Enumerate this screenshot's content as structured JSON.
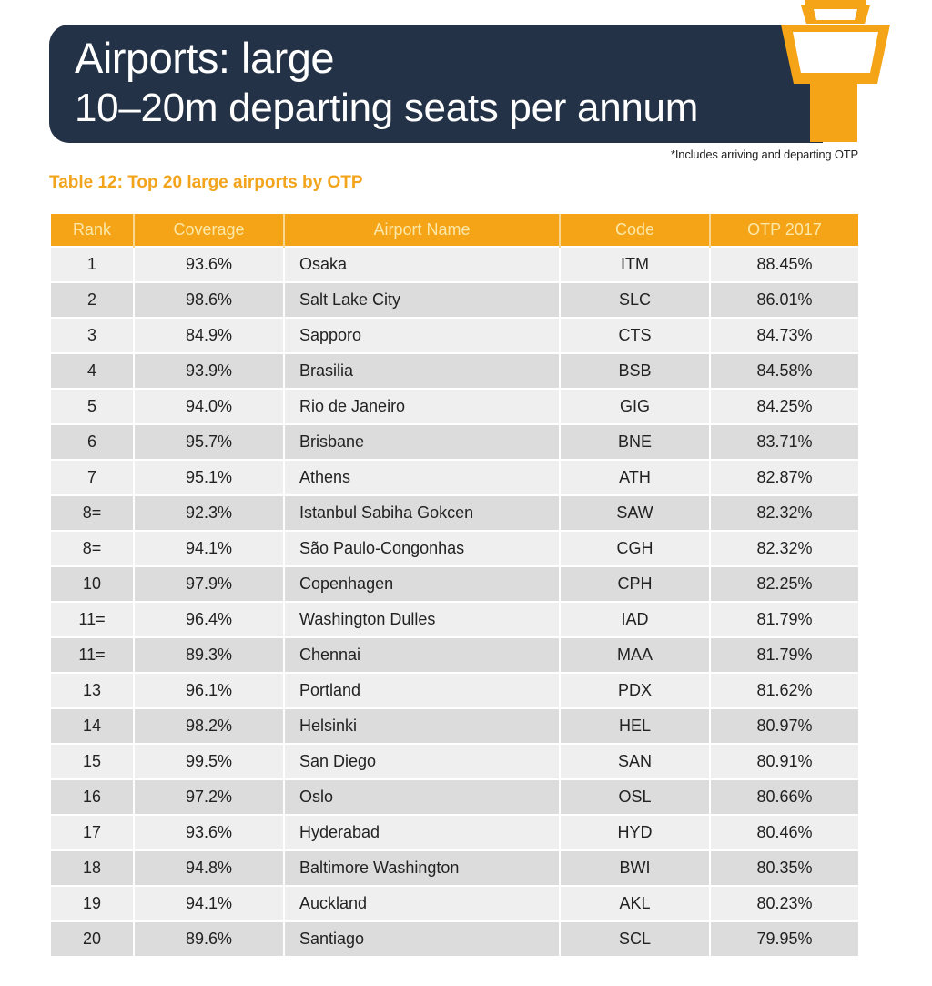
{
  "header": {
    "title": "Airports: large",
    "subtitle": "10–20m departing seats per annum",
    "icon": "control-tower-icon"
  },
  "footnote": "*Includes arriving and departing OTP",
  "table": {
    "caption": "Table 12: Top 20 large airports by OTP",
    "columns": [
      "Rank",
      "Coverage",
      "Airport Name",
      "Code",
      "OTP 2017"
    ],
    "rows": [
      {
        "rank": "1",
        "coverage": "93.6%",
        "name": "Osaka",
        "code": "ITM",
        "otp": "88.45%"
      },
      {
        "rank": "2",
        "coverage": "98.6%",
        "name": "Salt Lake City",
        "code": "SLC",
        "otp": "86.01%"
      },
      {
        "rank": "3",
        "coverage": "84.9%",
        "name": "Sapporo",
        "code": "CTS",
        "otp": "84.73%"
      },
      {
        "rank": "4",
        "coverage": "93.9%",
        "name": "Brasilia",
        "code": "BSB",
        "otp": "84.58%"
      },
      {
        "rank": "5",
        "coverage": "94.0%",
        "name": "Rio de Janeiro",
        "code": "GIG",
        "otp": "84.25%"
      },
      {
        "rank": "6",
        "coverage": "95.7%",
        "name": "Brisbane",
        "code": "BNE",
        "otp": "83.71%"
      },
      {
        "rank": "7",
        "coverage": "95.1%",
        "name": "Athens",
        "code": "ATH",
        "otp": "82.87%"
      },
      {
        "rank": "8=",
        "coverage": "92.3%",
        "name": "Istanbul Sabiha Gokcen",
        "code": "SAW",
        "otp": "82.32%"
      },
      {
        "rank": "8=",
        "coverage": "94.1%",
        "name": "São Paulo-Congonhas",
        "code": "CGH",
        "otp": "82.32%"
      },
      {
        "rank": "10",
        "coverage": "97.9%",
        "name": "Copenhagen",
        "code": "CPH",
        "otp": "82.25%"
      },
      {
        "rank": "11=",
        "coverage": "96.4%",
        "name": "Washington Dulles",
        "code": "IAD",
        "otp": "81.79%"
      },
      {
        "rank": "11=",
        "coverage": "89.3%",
        "name": "Chennai",
        "code": "MAA",
        "otp": "81.79%"
      },
      {
        "rank": "13",
        "coverage": "96.1%",
        "name": "Portland",
        "code": "PDX",
        "otp": "81.62%"
      },
      {
        "rank": "14",
        "coverage": "98.2%",
        "name": "Helsinki",
        "code": "HEL",
        "otp": "80.97%"
      },
      {
        "rank": "15",
        "coverage": "99.5%",
        "name": "San Diego",
        "code": "SAN",
        "otp": "80.91%"
      },
      {
        "rank": "16",
        "coverage": "97.2%",
        "name": "Oslo",
        "code": "OSL",
        "otp": "80.66%"
      },
      {
        "rank": "17",
        "coverage": "93.6%",
        "name": "Hyderabad",
        "code": "HYD",
        "otp": "80.46%"
      },
      {
        "rank": "18",
        "coverage": "94.8%",
        "name": "Baltimore Washington",
        "code": "BWI",
        "otp": "80.35%"
      },
      {
        "rank": "19",
        "coverage": "94.1%",
        "name": "Auckland",
        "code": "AKL",
        "otp": "80.23%"
      },
      {
        "rank": "20",
        "coverage": "89.6%",
        "name": "Santiago",
        "code": "SCL",
        "otp": "79.95%"
      }
    ]
  },
  "colors": {
    "banner": "#233246",
    "accent": "#f5a417",
    "header_text": "#fbe8a8",
    "row_light": "#efefef",
    "row_dark": "#dcdcdc"
  }
}
